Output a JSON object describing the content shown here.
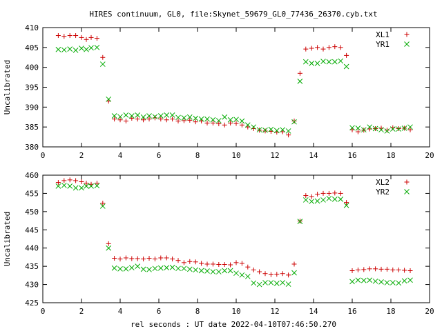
{
  "page": {
    "title": "HIRES continuum, GL0, file:Skynet_59679_GL0_77436_26370.cyb.txt",
    "xlabel": "rel seconds : UT date 2022-04-10T07:46:50.270"
  },
  "chart_data": [
    {
      "type": "scatter",
      "ylabel": "Uncalibrated",
      "xlim": [
        0,
        20
      ],
      "ylim": [
        380,
        410
      ],
      "xticks": [
        0,
        2,
        4,
        6,
        8,
        10,
        12,
        14,
        16,
        18,
        20
      ],
      "yticks": [
        380,
        385,
        390,
        395,
        400,
        405,
        410
      ],
      "legend_position": "top-right",
      "series": [
        {
          "name": "XL1",
          "marker": "plus",
          "color": "#cc0000",
          "x": [
            0.8,
            1.1,
            1.4,
            1.7,
            2.0,
            2.25,
            2.5,
            2.8,
            3.1,
            3.4,
            3.7,
            4.0,
            4.3,
            4.6,
            4.9,
            5.2,
            5.5,
            5.8,
            6.1,
            6.4,
            6.7,
            7.0,
            7.3,
            7.6,
            7.9,
            8.2,
            8.5,
            8.8,
            9.1,
            9.4,
            9.7,
            10.0,
            10.3,
            10.6,
            10.9,
            11.2,
            11.5,
            11.8,
            12.1,
            12.4,
            12.7,
            13.0,
            13.3,
            13.6,
            13.9,
            14.2,
            14.5,
            14.8,
            15.1,
            15.4,
            15.7,
            16.0,
            16.3,
            16.6,
            16.9,
            17.2,
            17.5,
            17.8,
            18.1,
            18.4,
            18.7,
            19.0
          ],
          "y": [
            408,
            407.8,
            408,
            408,
            407.5,
            407,
            407.5,
            407.3,
            402.5,
            391.5,
            387,
            386.8,
            386.5,
            387.2,
            387,
            386.8,
            387,
            387.3,
            387,
            386.8,
            387,
            386.5,
            386.6,
            386.7,
            386.3,
            386.5,
            386,
            386,
            385.8,
            385.5,
            386,
            385.9,
            385.5,
            385,
            384.6,
            384.2,
            384,
            383.9,
            383.7,
            383.8,
            383,
            386.5,
            398.5,
            404.6,
            404.8,
            405,
            404.6,
            405,
            405.2,
            405,
            403,
            384.3,
            383.8,
            384.2,
            384.5,
            384.6,
            384.7,
            384.2,
            384.8,
            384.6,
            384.7,
            384.3
          ]
        },
        {
          "name": "YR1",
          "marker": "cross",
          "color": "#00aa00",
          "x": [
            0.8,
            1.1,
            1.4,
            1.7,
            2.0,
            2.25,
            2.5,
            2.8,
            3.1,
            3.4,
            3.7,
            4.0,
            4.3,
            4.6,
            4.9,
            5.2,
            5.5,
            5.8,
            6.1,
            6.4,
            6.7,
            7.0,
            7.3,
            7.6,
            7.9,
            8.2,
            8.5,
            8.8,
            9.1,
            9.4,
            9.7,
            10.0,
            10.3,
            10.6,
            10.9,
            11.2,
            11.5,
            11.8,
            12.1,
            12.4,
            12.7,
            13.0,
            13.3,
            13.6,
            13.9,
            14.2,
            14.5,
            14.8,
            15.1,
            15.4,
            15.7,
            16.0,
            16.3,
            16.6,
            16.9,
            17.2,
            17.5,
            17.8,
            18.1,
            18.4,
            18.7,
            19.0
          ],
          "y": [
            404.5,
            404.4,
            404.6,
            404.3,
            404.8,
            404.5,
            404.9,
            405,
            400.8,
            392,
            387.8,
            387.6,
            388,
            387.8,
            388,
            387.5,
            387.8,
            387.6,
            387.8,
            388,
            388,
            387.4,
            387.3,
            387.5,
            387.2,
            387,
            387,
            386.8,
            386.6,
            387.5,
            386.8,
            386.9,
            386.5,
            385.5,
            385,
            384.3,
            384.2,
            384.4,
            384.1,
            384.3,
            384,
            386.3,
            396.5,
            401.4,
            401,
            401,
            401.5,
            401.4,
            401.4,
            401.6,
            400.2,
            384.8,
            384.7,
            384.3,
            385,
            384.6,
            384.3,
            384,
            384.5,
            384.5,
            384.7,
            385
          ]
        }
      ]
    },
    {
      "type": "scatter",
      "ylabel": "Uncalibrated",
      "xlim": [
        0,
        20
      ],
      "ylim": [
        425,
        460
      ],
      "xticks": [
        0,
        2,
        4,
        6,
        8,
        10,
        12,
        14,
        16,
        18,
        20
      ],
      "yticks": [
        425,
        430,
        435,
        440,
        445,
        450,
        455,
        460
      ],
      "legend_position": "top-right",
      "series": [
        {
          "name": "XL2",
          "marker": "plus",
          "color": "#cc0000",
          "x": [
            0.8,
            1.1,
            1.4,
            1.7,
            2.0,
            2.25,
            2.5,
            2.8,
            3.1,
            3.4,
            3.7,
            4.0,
            4.3,
            4.6,
            4.9,
            5.2,
            5.5,
            5.8,
            6.1,
            6.4,
            6.7,
            7.0,
            7.3,
            7.6,
            7.9,
            8.2,
            8.5,
            8.8,
            9.1,
            9.4,
            9.7,
            10.0,
            10.3,
            10.6,
            10.9,
            11.2,
            11.5,
            11.8,
            12.1,
            12.4,
            12.7,
            13.0,
            13.3,
            13.6,
            13.9,
            14.2,
            14.5,
            14.8,
            15.1,
            15.4,
            15.7,
            16.0,
            16.3,
            16.6,
            16.9,
            17.2,
            17.5,
            17.8,
            18.1,
            18.4,
            18.7,
            19.0
          ],
          "y": [
            458,
            458.5,
            458.7,
            458.5,
            458.2,
            457.8,
            457.5,
            457.8,
            452.3,
            441.2,
            437.2,
            437,
            437.3,
            437.1,
            437.1,
            437,
            437.2,
            437,
            437.3,
            437.3,
            437,
            436.6,
            436,
            436.3,
            436.2,
            435.8,
            435.6,
            435.6,
            435.5,
            435.5,
            435.4,
            436,
            435.8,
            434.8,
            434,
            433.5,
            433,
            432.7,
            432.8,
            433,
            432.6,
            435.6,
            447.4,
            454.4,
            454.1,
            454.8,
            455,
            455,
            455.1,
            455,
            452.5,
            433.8,
            434,
            434.1,
            434.3,
            434.3,
            434.2,
            434.2,
            434,
            434,
            433.9,
            433.8
          ]
        },
        {
          "name": "YR2",
          "marker": "cross",
          "color": "#00aa00",
          "x": [
            0.8,
            1.1,
            1.4,
            1.7,
            2.0,
            2.25,
            2.5,
            2.8,
            3.1,
            3.4,
            3.7,
            4.0,
            4.3,
            4.6,
            4.9,
            5.2,
            5.5,
            5.8,
            6.1,
            6.4,
            6.7,
            7.0,
            7.3,
            7.6,
            7.9,
            8.2,
            8.5,
            8.8,
            9.1,
            9.4,
            9.7,
            10.0,
            10.3,
            10.6,
            10.9,
            11.2,
            11.5,
            11.8,
            12.1,
            12.4,
            12.7,
            13.0,
            13.3,
            13.6,
            13.9,
            14.2,
            14.5,
            14.8,
            15.1,
            15.4,
            15.7,
            16.0,
            16.3,
            16.6,
            16.9,
            17.2,
            17.5,
            17.8,
            18.1,
            18.4,
            18.7,
            19.0
          ],
          "y": [
            457,
            457.2,
            457,
            456.5,
            456.5,
            457,
            457,
            457.1,
            451.5,
            440,
            434.5,
            434.3,
            434.3,
            434.6,
            435,
            434.2,
            434.1,
            434.4,
            434.5,
            434.6,
            434.7,
            434.4,
            434.4,
            434.2,
            434,
            433.8,
            433.7,
            433.5,
            433.5,
            433.8,
            433.8,
            433.1,
            432.6,
            432.2,
            430.4,
            430,
            430.5,
            430.5,
            430.3,
            430.5,
            430.1,
            433.2,
            447.3,
            453.2,
            452.8,
            452.9,
            453.2,
            453.6,
            453.4,
            453.4,
            451.7,
            430.8,
            431.2,
            431.1,
            431.2,
            430.9,
            430.7,
            430.5,
            430.5,
            430.4,
            431,
            431.2
          ]
        }
      ]
    }
  ]
}
